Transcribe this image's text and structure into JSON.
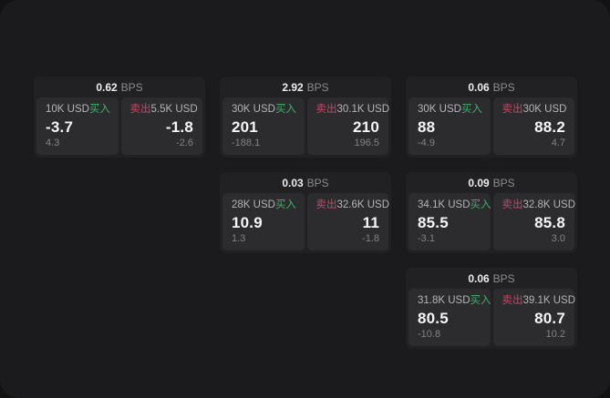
{
  "colors": {
    "buy_green": "#3fb06a",
    "sell_red": "#c04a66",
    "window_bg": "#1b1b1d",
    "card_bg": "#212123",
    "panel_bg": "#2c2c2e"
  },
  "labels": {
    "bps_unit": "BPS",
    "buy": "买入",
    "sell": "卖出"
  },
  "cards": [
    {
      "bps": "0.62",
      "unit": "BPS",
      "buy": {
        "notional": "10K USD",
        "label": "买入",
        "price": "-3.7",
        "delta": "4.3"
      },
      "sell": {
        "label": "卖出",
        "notional": "5.5K USD",
        "price": "-1.8",
        "delta": "-2.6"
      }
    },
    {
      "bps": "2.92",
      "unit": "BPS",
      "buy": {
        "notional": "30K USD",
        "label": "买入",
        "price": "201",
        "delta": "-188.1"
      },
      "sell": {
        "label": "卖出",
        "notional": "30.1K USD",
        "price": "210",
        "delta": "196.5"
      }
    },
    {
      "bps": "0.06",
      "unit": "BPS",
      "buy": {
        "notional": "30K USD",
        "label": "买入",
        "price": "88",
        "delta": "-4.9"
      },
      "sell": {
        "label": "卖出",
        "notional": "30K USD",
        "price": "88.2",
        "delta": "4.7"
      }
    },
    {
      "bps": "0.03",
      "unit": "BPS",
      "buy": {
        "notional": "28K USD",
        "label": "买入",
        "price": "10.9",
        "delta": "1.3"
      },
      "sell": {
        "label": "卖出",
        "notional": "32.6K USD",
        "price": "11",
        "delta": "-1.8"
      }
    },
    {
      "bps": "0.09",
      "unit": "BPS",
      "buy": {
        "notional": "34.1K USD",
        "label": "买入",
        "price": "85.5",
        "delta": "-3.1"
      },
      "sell": {
        "label": "卖出",
        "notional": "32.8K USD",
        "price": "85.8",
        "delta": "3.0"
      }
    },
    {
      "bps": "0.06",
      "unit": "BPS",
      "buy": {
        "notional": "31.8K USD",
        "label": "买入",
        "price": "80.5",
        "delta": "-10.8"
      },
      "sell": {
        "label": "卖出",
        "notional": "39.1K USD",
        "price": "80.7",
        "delta": "10.2"
      }
    }
  ]
}
